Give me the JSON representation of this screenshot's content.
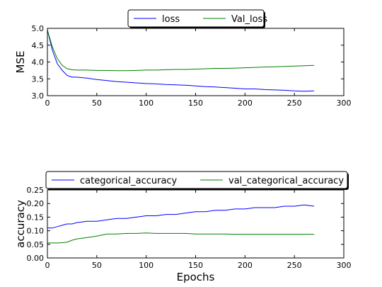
{
  "chart_data": [
    {
      "type": "line",
      "title": "",
      "xlabel": "",
      "ylabel": "MSE",
      "xlim": [
        0,
        300
      ],
      "ylim": [
        3.0,
        5.0
      ],
      "xticks": [
        0,
        50,
        100,
        150,
        200,
        250,
        300
      ],
      "yticks": [
        3.0,
        3.5,
        4.0,
        4.5,
        5.0
      ],
      "legend_position": "top-center",
      "grid": false,
      "series": [
        {
          "name": "loss",
          "color": "#0000ff",
          "x": [
            0,
            5,
            10,
            15,
            20,
            25,
            30,
            40,
            50,
            60,
            70,
            80,
            90,
            100,
            110,
            120,
            130,
            140,
            150,
            160,
            170,
            180,
            190,
            200,
            210,
            220,
            230,
            240,
            250,
            260,
            270
          ],
          "y": [
            4.95,
            4.35,
            3.95,
            3.75,
            3.6,
            3.55,
            3.55,
            3.52,
            3.48,
            3.45,
            3.42,
            3.4,
            3.38,
            3.36,
            3.35,
            3.33,
            3.32,
            3.31,
            3.29,
            3.27,
            3.26,
            3.24,
            3.22,
            3.2,
            3.2,
            3.18,
            3.17,
            3.16,
            3.14,
            3.13,
            3.14
          ]
        },
        {
          "name": "Val_loss",
          "color": "#008000",
          "x": [
            0,
            5,
            10,
            15,
            20,
            25,
            30,
            40,
            50,
            60,
            70,
            80,
            90,
            100,
            110,
            120,
            130,
            140,
            150,
            160,
            170,
            180,
            190,
            200,
            210,
            220,
            230,
            240,
            250,
            260,
            270
          ],
          "y": [
            4.95,
            4.45,
            4.1,
            3.9,
            3.8,
            3.77,
            3.76,
            3.76,
            3.75,
            3.75,
            3.74,
            3.74,
            3.75,
            3.76,
            3.76,
            3.77,
            3.78,
            3.78,
            3.79,
            3.8,
            3.81,
            3.81,
            3.82,
            3.83,
            3.84,
            3.85,
            3.86,
            3.87,
            3.88,
            3.89,
            3.9
          ]
        }
      ]
    },
    {
      "type": "line",
      "title": "",
      "xlabel": "Epochs",
      "ylabel": "accuracy",
      "xlim": [
        0,
        300
      ],
      "ylim": [
        0.0,
        0.25
      ],
      "xticks": [
        0,
        50,
        100,
        150,
        200,
        250,
        300
      ],
      "yticks": [
        0.0,
        0.05,
        0.1,
        0.15,
        0.2,
        0.25
      ],
      "ytick_labels": [
        "0.00",
        "0.05",
        "0.10",
        "0.15",
        "0.20",
        "0.25"
      ],
      "legend_position": "top-center",
      "grid": false,
      "series": [
        {
          "name": "categorical_accuracy",
          "color": "#0000ff",
          "x": [
            0,
            5,
            10,
            15,
            20,
            25,
            30,
            40,
            50,
            60,
            70,
            80,
            90,
            100,
            110,
            120,
            130,
            140,
            150,
            160,
            170,
            180,
            190,
            200,
            210,
            220,
            230,
            240,
            250,
            260,
            270
          ],
          "y": [
            0.11,
            0.11,
            0.115,
            0.12,
            0.125,
            0.125,
            0.13,
            0.135,
            0.135,
            0.14,
            0.145,
            0.145,
            0.15,
            0.155,
            0.155,
            0.16,
            0.16,
            0.165,
            0.17,
            0.17,
            0.175,
            0.175,
            0.18,
            0.18,
            0.185,
            0.185,
            0.185,
            0.19,
            0.19,
            0.195,
            0.19
          ]
        },
        {
          "name": "val_categorical_accuracy",
          "color": "#008000",
          "x": [
            0,
            5,
            10,
            15,
            20,
            25,
            30,
            40,
            50,
            60,
            70,
            80,
            90,
            100,
            110,
            120,
            130,
            140,
            150,
            160,
            170,
            180,
            190,
            200,
            210,
            220,
            230,
            240,
            250,
            260,
            270
          ],
          "y": [
            0.055,
            0.055,
            0.055,
            0.056,
            0.058,
            0.065,
            0.07,
            0.075,
            0.08,
            0.088,
            0.088,
            0.09,
            0.09,
            0.092,
            0.09,
            0.09,
            0.09,
            0.09,
            0.088,
            0.088,
            0.088,
            0.088,
            0.087,
            0.087,
            0.087,
            0.087,
            0.087,
            0.087,
            0.087,
            0.087,
            0.087
          ]
        }
      ]
    }
  ]
}
